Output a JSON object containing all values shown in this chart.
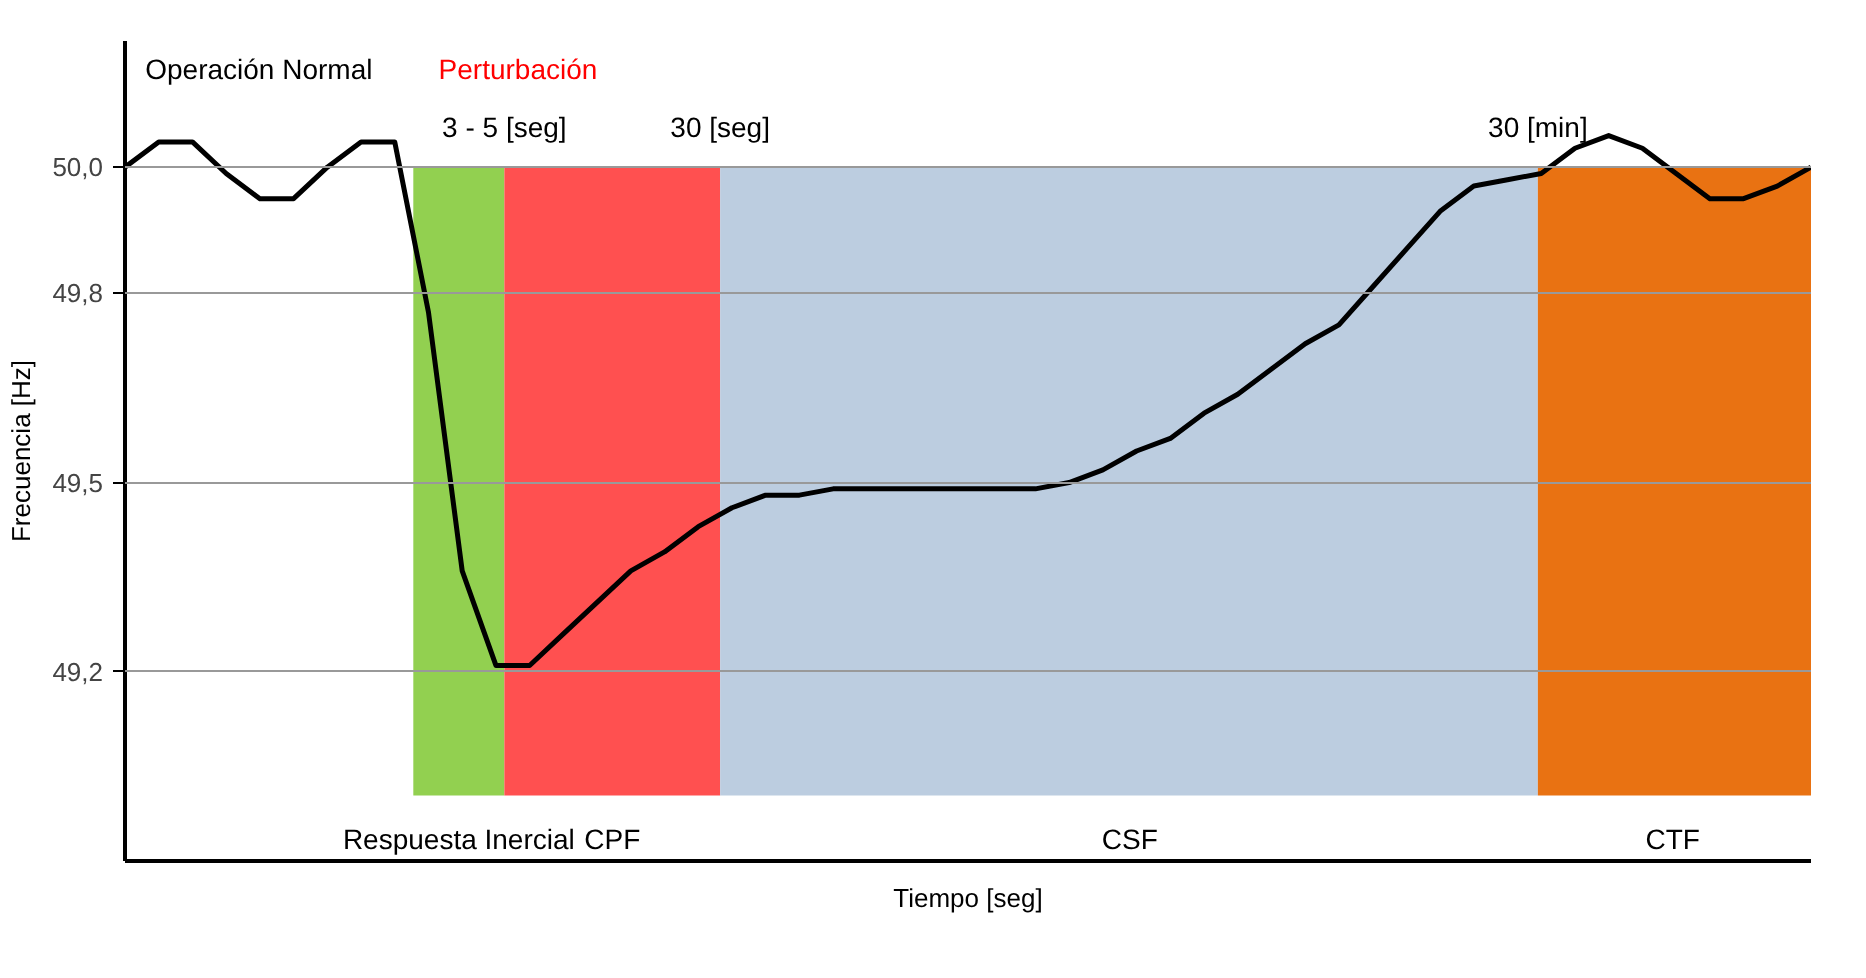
{
  "chart_data": {
    "type": "line",
    "xlabel": "Tiempo [seg]",
    "ylabel": "Frecuencia [Hz]",
    "categories": [
      null,
      null,
      null,
      null,
      null,
      null,
      null,
      null,
      null,
      null,
      null,
      null,
      null,
      null,
      null,
      null,
      null,
      null,
      null,
      null,
      null,
      null,
      null,
      null,
      null,
      null,
      null,
      null,
      null,
      null,
      null,
      null,
      null,
      null,
      null,
      null,
      null,
      null,
      null,
      null,
      null,
      null,
      null,
      null,
      null,
      null,
      null,
      null,
      null,
      null,
      null
    ],
    "series": [
      {
        "color": "#000000",
        "values": [
          50.0,
          50.04,
          50.04,
          49.99,
          49.95,
          49.95,
          50.0,
          50.04,
          50.04,
          49.77,
          49.36,
          49.21,
          49.21,
          49.26,
          49.31,
          49.36,
          49.39,
          49.43,
          49.46,
          49.48,
          49.48,
          49.49,
          49.49,
          49.49,
          49.49,
          49.49,
          49.49,
          49.49,
          49.5,
          49.52,
          49.55,
          49.57,
          49.61,
          49.64,
          49.68,
          49.72,
          49.75,
          49.81,
          49.87,
          49.93,
          49.97,
          49.98,
          49.99,
          50.03,
          50.05,
          50.03,
          49.99,
          49.95,
          49.95,
          49.97,
          50.0
        ]
      }
    ],
    "ylim": [
      48.9,
      50.2
    ],
    "yticks": [
      {
        "value": 50.0,
        "label": "50,0"
      },
      {
        "value": 49.8,
        "label": "49,8"
      },
      {
        "value": 49.5,
        "label": "49,5"
      },
      {
        "value": 49.2,
        "label": "49,2"
      }
    ],
    "tick_labels": "y",
    "grid": "y",
    "annotations": [
      "Operación Normal",
      "Perturbación",
      "3 - 5 [seg]",
      "30 [seg]",
      "30 [min]",
      "Respuesta Inercial",
      "CPF",
      "CSF",
      "CTF"
    ]
  }
}
